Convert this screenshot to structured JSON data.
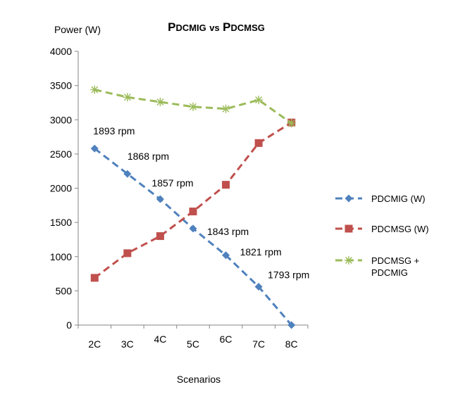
{
  "chart_data": {
    "type": "line",
    "title": "PDCMIG vs PDCMSG",
    "ylabel": "Power  (W)",
    "xlabel": "Scenarios",
    "categories": [
      "2C",
      "3C",
      "4C",
      "5C",
      "6C",
      "7C",
      "8C"
    ],
    "ylim": [
      0,
      4000
    ],
    "yticks": [
      0,
      500,
      1000,
      1500,
      2000,
      2500,
      3000,
      3500,
      4000
    ],
    "grid": false,
    "legend_position": "right",
    "series": [
      {
        "name": "PDCMIG  (W)",
        "color": "#4f81bd",
        "marker": "diamond",
        "values": [
          2580,
          2210,
          1840,
          1410,
          1020,
          560,
          0
        ]
      },
      {
        "name": "PDCMSG (W)",
        "color": "#c0504d",
        "marker": "square",
        "values": [
          690,
          1050,
          1300,
          1660,
          2050,
          2660,
          2960
        ]
      },
      {
        "name": "PDCMSG + PDCMIG",
        "legend_lines": [
          "PDCMSG +",
          "PDCMIG"
        ],
        "color": "#9bbb59",
        "marker": "asterisk",
        "values": [
          3440,
          3330,
          3260,
          3190,
          3160,
          3290,
          2950
        ]
      }
    ],
    "annotations": [
      {
        "text": "1893 rpm",
        "category": "2C",
        "value": 2580
      },
      {
        "text": "1868 rpm",
        "category": "3C",
        "value": 2210
      },
      {
        "text": "1857 rpm",
        "category": "4C",
        "value": 1840
      },
      {
        "text": "1843 rpm",
        "category": "5C",
        "value": 1410
      },
      {
        "text": "1821 rpm",
        "category": "6C",
        "value": 1020
      },
      {
        "text": "1793 rpm",
        "category": "7C",
        "value": 560
      }
    ]
  }
}
